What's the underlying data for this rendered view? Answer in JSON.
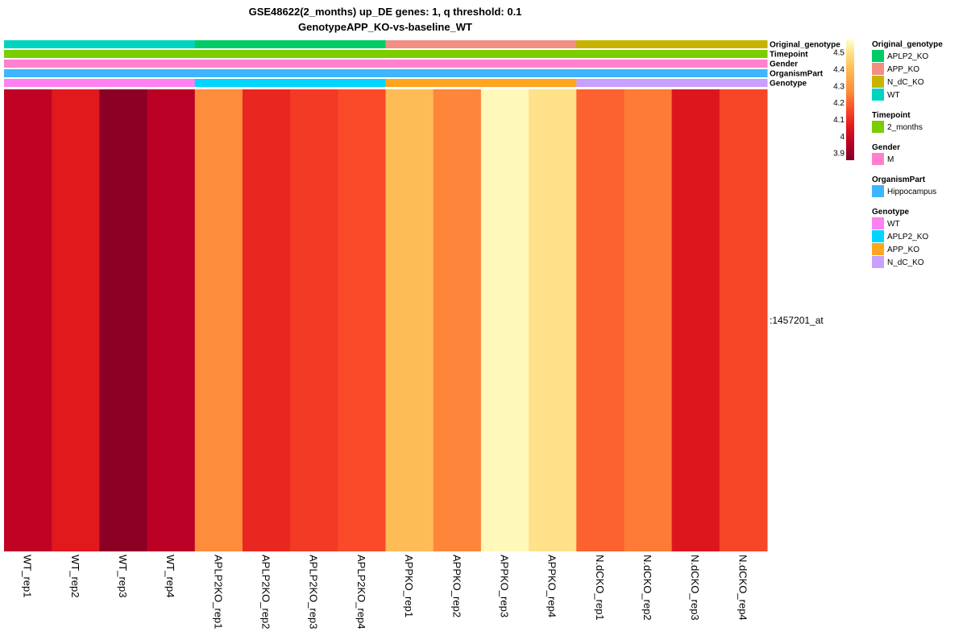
{
  "chart_data": {
    "type": "heatmap",
    "title": "GSE48622(2_months) up_DE genes: 1, q threshold: 0.1",
    "subtitle": "GenotypeAPP_KO-vs-baseline_WT",
    "rows": [
      ":1457201_at"
    ],
    "columns": [
      "WT_rep1",
      "WT_rep2",
      "WT_rep3",
      "WT_rep4",
      "APLP2KO_rep1",
      "APLP2KO_rep2",
      "APLP2KO_rep3",
      "APLP2KO_rep4",
      "APPKO_rep1",
      "APPKO_rep2",
      "APPKO_rep3",
      "APPKO_rep4",
      "N.dCKO_rep1",
      "N.dCKO_rep2",
      "N.dCKO_rep3",
      "N.dCKO_rep4"
    ],
    "values": [
      [
        3.97,
        4.06,
        3.88,
        3.96,
        4.27,
        4.09,
        4.13,
        4.16,
        4.4,
        4.26,
        4.56,
        4.5,
        4.2,
        4.24,
        4.05,
        4.15
      ]
    ],
    "color_scale": {
      "min": 3.86,
      "max": 4.58,
      "ticks": [
        "3.9",
        "4",
        "4.1",
        "4.2",
        "4.3",
        "4.4",
        "4.5"
      ],
      "colors": [
        "#800026",
        "#bd0026",
        "#e31a1c",
        "#fc4e2a",
        "#fd8d3c",
        "#feb24c",
        "#fed976",
        "#ffffcc"
      ]
    },
    "annotations": [
      {
        "name": "Original_genotype",
        "values": [
          "WT",
          "WT",
          "WT",
          "WT",
          "APLP2_KO",
          "APLP2_KO",
          "APLP2_KO",
          "APLP2_KO",
          "APP_KO",
          "APP_KO",
          "APP_KO",
          "APP_KO",
          "N_dC_KO",
          "N_dC_KO",
          "N_dC_KO",
          "N_dC_KO"
        ]
      },
      {
        "name": "Timepoint",
        "values": [
          "2_months",
          "2_months",
          "2_months",
          "2_months",
          "2_months",
          "2_months",
          "2_months",
          "2_months",
          "2_months",
          "2_months",
          "2_months",
          "2_months",
          "2_months",
          "2_months",
          "2_months",
          "2_months"
        ]
      },
      {
        "name": "Gender",
        "values": [
          "M",
          "M",
          "M",
          "M",
          "M",
          "M",
          "M",
          "M",
          "M",
          "M",
          "M",
          "M",
          "M",
          "M",
          "M",
          "M"
        ]
      },
      {
        "name": "OrganismPart",
        "values": [
          "Hippocampus",
          "Hippocampus",
          "Hippocampus",
          "Hippocampus",
          "Hippocampus",
          "Hippocampus",
          "Hippocampus",
          "Hippocampus",
          "Hippocampus",
          "Hippocampus",
          "Hippocampus",
          "Hippocampus",
          "Hippocampus",
          "Hippocampus",
          "Hippocampus",
          "Hippocampus"
        ]
      },
      {
        "name": "Genotype",
        "values": [
          "WT",
          "WT",
          "WT",
          "WT",
          "APLP2_KO",
          "APLP2_KO",
          "APLP2_KO",
          "APLP2_KO",
          "APP_KO",
          "APP_KO",
          "APP_KO",
          "APP_KO",
          "N_dC_KO",
          "N_dC_KO",
          "N_dC_KO",
          "N_dC_KO"
        ]
      }
    ],
    "legend": [
      {
        "title": "Original_genotype",
        "items": [
          {
            "label": "APLP2_KO",
            "color": "#00cc66"
          },
          {
            "label": "APP_KO",
            "color": "#f28e82"
          },
          {
            "label": "N_dC_KO",
            "color": "#c8b400"
          },
          {
            "label": "WT",
            "color": "#00d4c0"
          }
        ]
      },
      {
        "title": "Timepoint",
        "items": [
          {
            "label": "2_months",
            "color": "#7ccd00"
          }
        ]
      },
      {
        "title": "Gender",
        "items": [
          {
            "label": "M",
            "color": "#ff80cc"
          }
        ]
      },
      {
        "title": "OrganismPart",
        "items": [
          {
            "label": "Hippocampus",
            "color": "#3fb5ff"
          }
        ]
      },
      {
        "title": "Genotype",
        "items": [
          {
            "label": "WT",
            "color": "#ff80f0"
          },
          {
            "label": "APLP2_KO",
            "color": "#00d4ff"
          },
          {
            "label": "APP_KO",
            "color": "#ffa51e"
          },
          {
            "label": "N_dC_KO",
            "color": "#c8a0ff"
          }
        ]
      }
    ]
  }
}
